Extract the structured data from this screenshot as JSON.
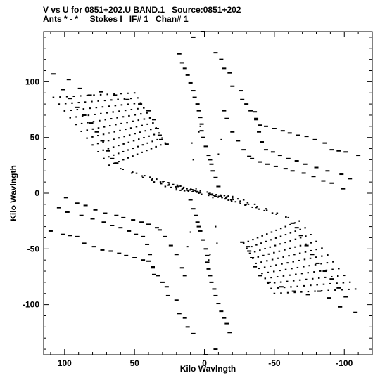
{
  "header": {
    "line1": "V vs U for 0851+202.U BAND.1   Source:0851+202",
    "line2": "Ants * - *     Stokes I   IF# 1   Chan# 1"
  },
  "chart_data": {
    "type": "scatter",
    "xlabel": "Kilo Wavlngth",
    "ylabel": "Kilo Wavlngth",
    "xlim": [
      115,
      -120
    ],
    "ylim": [
      -145,
      145
    ],
    "x_reversed": true,
    "x_ticks": [
      100,
      50,
      0,
      -50,
      -100
    ],
    "x_tick_labels": [
      "100",
      "50",
      "0",
      "-50",
      "-100"
    ],
    "y_ticks": [
      100,
      50,
      0,
      -50,
      -100
    ],
    "y_tick_labels": [
      "100",
      "50",
      "0",
      "-50",
      "-100"
    ],
    "grid": false,
    "marker_color": "#000000",
    "point_symmetry": "each (u,v) point also plotted at (-u,-v)",
    "dash_tracks": [
      {
        "name": "track-1",
        "points": [
          [
            108,
            107
          ],
          [
            101,
            93
          ],
          [
            96,
            85
          ],
          [
            91,
            77
          ],
          [
            86,
            70
          ],
          [
            81,
            63
          ],
          [
            77,
            55
          ],
          [
            73,
            47
          ],
          [
            69,
            38
          ],
          [
            66,
            31
          ],
          [
            63,
            27
          ]
        ]
      },
      {
        "name": "track-2",
        "points": [
          [
            97,
            102
          ],
          [
            89,
            94
          ],
          [
            82,
            88
          ],
          [
            74,
            91
          ],
          [
            64,
            88
          ],
          [
            55,
            84
          ],
          [
            46,
            80
          ],
          [
            40,
            74
          ],
          [
            36,
            66
          ],
          [
            34,
            58
          ],
          [
            32,
            52
          ],
          [
            31,
            48
          ],
          [
            27,
            44
          ]
        ]
      },
      {
        "name": "track-3",
        "points": [
          [
            18,
            125
          ],
          [
            16,
            117
          ],
          [
            14,
            112
          ],
          [
            12,
            106
          ],
          [
            10,
            99
          ],
          [
            8,
            92
          ],
          [
            7,
            86
          ],
          [
            5,
            80
          ],
          [
            4,
            74
          ],
          [
            3,
            68
          ],
          [
            2,
            62
          ],
          [
            2,
            56
          ],
          [
            1,
            50
          ],
          [
            -1,
            42
          ],
          [
            -3,
            34
          ],
          [
            -4,
            30
          ],
          [
            -5,
            26
          ],
          [
            -6,
            20
          ],
          [
            -8,
            14
          ],
          [
            -10,
            6
          ]
        ]
      },
      {
        "name": "track-4",
        "points": [
          [
            8,
            140
          ],
          [
            1,
            145
          ],
          [
            -8,
            126
          ],
          [
            -14,
            112
          ],
          [
            -20,
            96
          ],
          [
            -27,
            84
          ],
          [
            -33,
            74
          ],
          [
            -37,
            66
          ],
          [
            -40,
            61
          ],
          [
            -44,
            60
          ],
          [
            -50,
            58
          ],
          [
            -56,
            56
          ],
          [
            -61,
            54
          ],
          [
            -67,
            52
          ],
          [
            -73,
            51
          ],
          [
            -79,
            48
          ],
          [
            -86,
            45
          ],
          [
            -91,
            39
          ],
          [
            -96,
            38
          ],
          [
            -101,
            37
          ],
          [
            -110,
            34
          ]
        ]
      },
      {
        "name": "track-5",
        "points": [
          [
            -12,
            120
          ],
          [
            -18,
            108
          ],
          [
            -26,
            92
          ],
          [
            -30,
            80
          ],
          [
            -36,
            73
          ],
          [
            -37,
            67
          ],
          [
            -39,
            55
          ],
          [
            -41,
            46
          ],
          [
            -44,
            39
          ],
          [
            -49,
            37
          ],
          [
            -54,
            34
          ],
          [
            -60,
            31
          ],
          [
            -66,
            29
          ],
          [
            -72,
            26
          ],
          [
            -80,
            23
          ],
          [
            -88,
            20
          ],
          [
            -98,
            17
          ],
          [
            -104,
            13
          ]
        ]
      },
      {
        "name": "track-6",
        "points": [
          [
            -14,
            74
          ],
          [
            -16,
            67
          ],
          [
            -20,
            55
          ],
          [
            -24,
            47
          ],
          [
            -28,
            39
          ],
          [
            -32,
            33
          ],
          [
            -34,
            31
          ],
          [
            -40,
            28
          ],
          [
            -45,
            26
          ],
          [
            -51,
            24
          ],
          [
            -58,
            22
          ],
          [
            -63,
            20
          ],
          [
            -71,
            18
          ],
          [
            -78,
            15
          ],
          [
            -85,
            11
          ],
          [
            -91,
            9
          ],
          [
            -99,
            4
          ]
        ]
      }
    ],
    "grid_fan": {
      "outer_corners": {
        "top": [
          50,
          90
        ],
        "left": [
          108,
          86
        ],
        "right": [
          28,
          45
        ],
        "bottom": [
          68,
          25
        ]
      },
      "rows": 10,
      "cols": 12
    },
    "scatter_extra": [
      [
        5,
        1
      ],
      [
        4,
        0
      ],
      [
        3,
        2
      ],
      [
        6,
        4
      ],
      [
        2,
        -1
      ],
      [
        -8,
        -30
      ],
      [
        -9,
        -45
      ],
      [
        -4,
        -55
      ],
      [
        -3,
        -60
      ],
      [
        10,
        -35
      ],
      [
        12,
        -48
      ]
    ]
  }
}
